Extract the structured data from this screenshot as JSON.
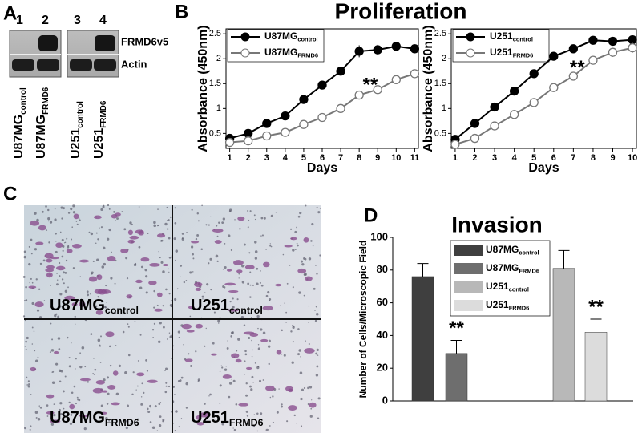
{
  "panel_a": {
    "letter": "A",
    "lanes": [
      "1",
      "2",
      "3",
      "4"
    ],
    "bands": [
      "FRMD6v5",
      "Actin"
    ],
    "samples": [
      [
        "U87MG",
        "control"
      ],
      [
        "U87MG",
        "FRMD6"
      ],
      [
        "U251",
        "control"
      ],
      [
        "U251",
        "FRMD6"
      ]
    ]
  },
  "panel_b": {
    "letter": "B"
  },
  "panel_c": {
    "letter": "C",
    "labels": [
      [
        "U87MG",
        "control"
      ],
      [
        "U251",
        "control"
      ],
      [
        "U87MG",
        "FRMD6"
      ],
      [
        "U251",
        "FRMD6"
      ]
    ]
  },
  "panel_d": {
    "letter": "D"
  },
  "chart_data": [
    {
      "type": "line",
      "title": "Proliferation",
      "ylabel": "Absorbance (450nm)",
      "xlabel": "Days",
      "x": [
        1,
        2,
        3,
        4,
        5,
        6,
        7,
        8,
        9,
        10,
        11
      ],
      "xlim": [
        0.8,
        11.2
      ],
      "xticks": [
        1,
        2,
        3,
        4,
        5,
        6,
        7,
        8,
        9,
        10,
        11
      ],
      "ylim": [
        0.2,
        2.6
      ],
      "yticks": [
        0.5,
        1.0,
        1.5,
        2.0,
        2.5
      ],
      "annotation": "**",
      "annotation_at": [
        8.6,
        1.45
      ],
      "series": [
        {
          "name": [
            "U87MG",
            "control"
          ],
          "color": "#000000",
          "fill": "#000000",
          "values": [
            0.4,
            0.5,
            0.7,
            0.85,
            1.18,
            1.47,
            1.75,
            2.15,
            2.18,
            2.25,
            2.2
          ],
          "errors": [
            0.03,
            0.04,
            0.06,
            0.07,
            0.04,
            0.06,
            0.05,
            0.12,
            0.1,
            0.08,
            0.06
          ]
        },
        {
          "name": [
            "U87MG",
            "FRMD6"
          ],
          "color": "#777777",
          "fill": "#ffffff",
          "values": [
            0.32,
            0.35,
            0.45,
            0.52,
            0.68,
            0.82,
            1.0,
            1.27,
            1.38,
            1.58,
            1.7
          ],
          "errors": [
            0.02,
            0.02,
            0.04,
            0.04,
            0.03,
            0.03,
            0.05,
            0.08,
            0.05,
            0.06,
            0.04
          ]
        }
      ]
    },
    {
      "type": "line",
      "ylabel": "Absorbance (450nm)",
      "xlabel": "Days",
      "x": [
        1,
        2,
        3,
        4,
        5,
        6,
        7,
        8,
        9,
        10
      ],
      "xlim": [
        0.8,
        10.2
      ],
      "xticks": [
        1,
        2,
        3,
        4,
        5,
        6,
        7,
        8,
        9,
        10
      ],
      "ylim": [
        0.2,
        2.6
      ],
      "yticks": [
        0.5,
        1.0,
        1.5,
        2.0,
        2.5
      ],
      "annotation": "**",
      "annotation_at": [
        7.2,
        1.8
      ],
      "series": [
        {
          "name": [
            "U251",
            "control"
          ],
          "color": "#000000",
          "fill": "#000000",
          "values": [
            0.38,
            0.7,
            1.03,
            1.35,
            1.7,
            2.05,
            2.2,
            2.37,
            2.35,
            2.38
          ],
          "errors": [
            0.02,
            0.03,
            0.03,
            0.03,
            0.04,
            0.04,
            0.03,
            0.04,
            0.08,
            0.05
          ]
        },
        {
          "name": [
            "U251",
            "FRMD6"
          ],
          "color": "#777777",
          "fill": "#ffffff",
          "values": [
            0.28,
            0.4,
            0.65,
            0.88,
            1.12,
            1.42,
            1.65,
            1.97,
            2.13,
            2.22
          ],
          "errors": [
            0.02,
            0.03,
            0.03,
            0.04,
            0.07,
            0.07,
            0.05,
            0.04,
            0.09,
            0.1
          ]
        }
      ]
    },
    {
      "type": "bar",
      "title": "Invasion",
      "ylabel": "Number of Cells/Microscopic Field",
      "ylim": [
        0,
        100
      ],
      "yticks": [
        0,
        20,
        40,
        60,
        80,
        100
      ],
      "annotation": "**",
      "series": [
        {
          "name": [
            "U87MG",
            "control"
          ],
          "color": "#3f3f3f",
          "values": [
            76
          ],
          "errors": [
            8
          ]
        },
        {
          "name": [
            "U87MG",
            "FRMD6"
          ],
          "color": "#6e6e6e",
          "values": [
            29
          ],
          "errors": [
            8
          ]
        },
        {
          "name": [
            "U251",
            "control"
          ],
          "color": "#b8b8b8",
          "values": [
            81
          ],
          "errors": [
            11
          ]
        },
        {
          "name": [
            "U251",
            "FRMD6"
          ],
          "color": "#dcdcdc",
          "values": [
            42
          ],
          "errors": [
            8
          ]
        }
      ]
    }
  ]
}
